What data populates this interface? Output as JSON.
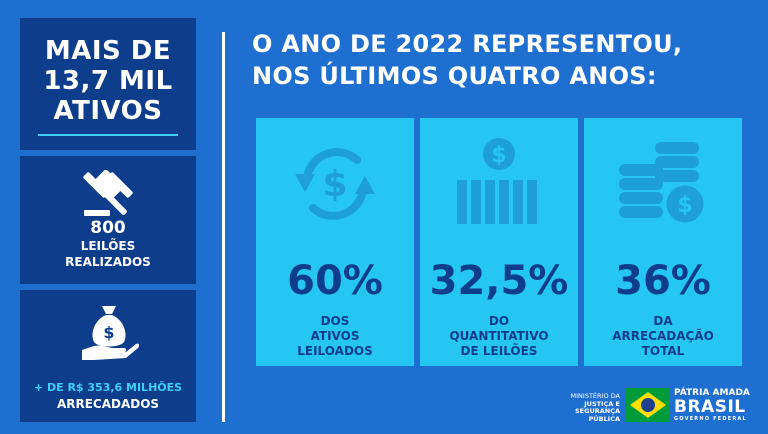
{
  "panel_total": {
    "title_lines": [
      "MAIS DE",
      "13,7 MIL",
      "ATIVOS"
    ]
  },
  "panel_auctions": {
    "number": "800",
    "label_lines": [
      "LEILÕES",
      "REALIZADOS"
    ],
    "icon": "gavel-icon"
  },
  "panel_revenue": {
    "line1": "+ DE R$ 353,6 MILHÕES",
    "line2": "ARRECADADOS",
    "icon": "money-bag-hand-icon"
  },
  "headline": {
    "lines": [
      "O ANO DE 2022 REPRESENTOU,",
      "NOS ÚLTIMOS QUATRO ANOS:"
    ]
  },
  "cards": [
    {
      "icon": "dollar-cycle-icon",
      "percent": "60%",
      "desc_lines": [
        "DOS",
        "ATIVOS",
        "LEILOADOS"
      ]
    },
    {
      "icon": "dollar-bars-icon",
      "percent": "32,5%",
      "desc_lines": [
        "DO",
        "QUANTITATIVO",
        "DE LEILÕES"
      ]
    },
    {
      "icon": "coin-stack-icon",
      "percent": "36%",
      "desc_lines": [
        "DA",
        "ARRECADAÇÃO",
        "TOTAL"
      ]
    }
  ],
  "footer": {
    "ministry_lines": [
      "MINISTÉRIO DA",
      "JUSTIÇA E",
      "SEGURANÇA PÚBLICA"
    ],
    "brand_line1": "PÁTRIA AMADA",
    "brand_line2": "BRASIL",
    "brand_line3": "GOVERNO FEDERAL"
  },
  "colors": {
    "background": "#1f6fd0",
    "panel": "#0e3d8c",
    "card": "#25c6f2",
    "accent": "#3fd0f5",
    "flag_green": "#009b3a",
    "flag_yellow": "#fedf00"
  }
}
